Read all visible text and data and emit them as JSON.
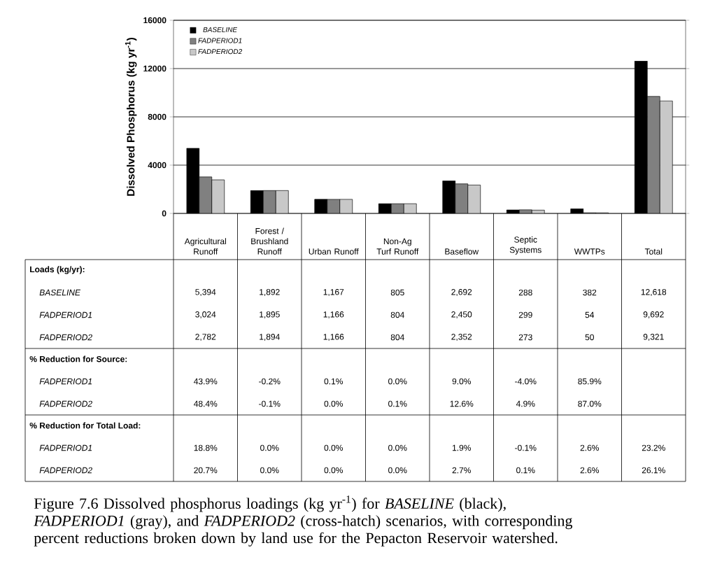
{
  "chart_data": {
    "type": "bar",
    "ylabel": "Dissolved Phosphorus (kg yr$^{-1}$)",
    "categories": [
      "Agricultural Runoff",
      "Forest / Brushland Runoff",
      "Urban Runoff",
      "Non-Ag Turf Runoff",
      "Baseflow",
      "Septic Systems",
      "WWTPs",
      "Total"
    ],
    "series": [
      {
        "name": "BASELINE",
        "color": "#000000",
        "values": [
          5394,
          1892,
          1167,
          805,
          2692,
          288,
          382,
          12618
        ],
        "value_labels": [
          "5,394",
          "1,892",
          "1,167",
          "805",
          "2,692",
          "288",
          "382",
          "12,618"
        ]
      },
      {
        "name": "FADPERIOD1",
        "color": "#808080",
        "values": [
          3024,
          1895,
          1166,
          804,
          2450,
          299,
          54,
          9692
        ],
        "value_labels": [
          "3,024",
          "1,895",
          "1,166",
          "804",
          "2,450",
          "299",
          "54",
          "9,692"
        ]
      },
      {
        "name": "FADPERIOD2",
        "color": "#c8c8c8",
        "values": [
          2782,
          1894,
          1166,
          804,
          2352,
          273,
          50,
          9321
        ],
        "value_labels": [
          "2,782",
          "1,894",
          "1,166",
          "804",
          "2,352",
          "273",
          "50",
          "9,321"
        ]
      }
    ],
    "ylim": [
      0,
      16000
    ],
    "yticks": [
      0,
      4000,
      8000,
      12000,
      16000
    ],
    "grid": "y",
    "legend": "top left",
    "annotations": [
      "Loads (kg/yr):",
      "% Reduction for Source:",
      "% Reduction for Total Load:",
      "FADPERIOD1",
      "43.9%",
      "-0.2%",
      "0.1%",
      "0.0%",
      "9.0%",
      "-4.0%",
      "85.9%",
      "FADPERIOD2",
      "48.4%",
      "-0.1%",
      "0.0%",
      "0.1%",
      "12.6%",
      "4.9%",
      "87.0%",
      "FADPERIOD1",
      "18.8%",
      "0.0%",
      "0.0%",
      "0.0%",
      "1.9%",
      "-0.1%",
      "2.6%",
      "23.2%",
      "FADPERIOD2",
      "20.7%",
      "0.0%",
      "0.0%",
      "0.0%",
      "2.7%",
      "0.1%",
      "2.6%",
      "26.1%",
      "Figure 7.6  Dissolved phosphorus loadings (kg yr$^{-1}$) for *BASELINE* (black), *FADPERIOD1* (gray), and *FADPERIOD2* (cross-hatch) scenarios, with corresponding percent reductions broken down by land use for the Pepacton Reservoir watershed."
    ]
  }
}
